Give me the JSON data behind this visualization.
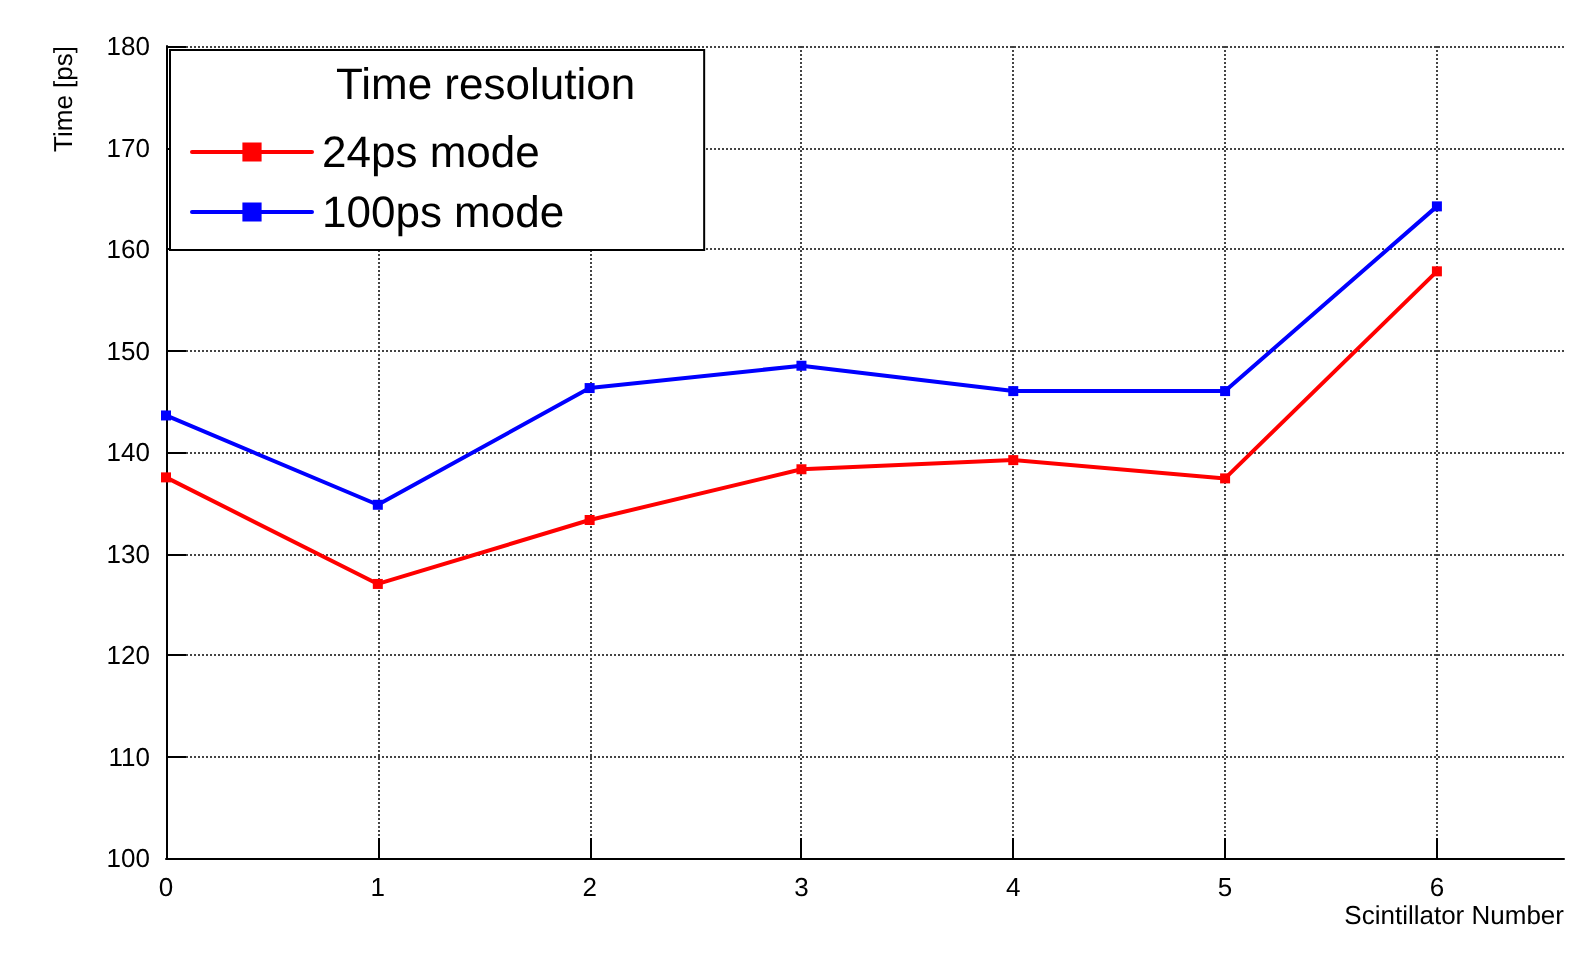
{
  "chart_data": {
    "type": "line",
    "xlabel": "Scintillator Number",
    "ylabel": "Time [ps]",
    "legend_title": "Time resolution",
    "x": [
      0,
      1,
      2,
      3,
      4,
      5,
      6
    ],
    "series": [
      {
        "name": "24ps mode",
        "color": "#ff0000",
        "values": [
          137.5,
          127,
          133.3,
          138.3,
          139.2,
          137.4,
          157.8
        ]
      },
      {
        "name": "100ps mode",
        "color": "#0000ff",
        "values": [
          143.6,
          134.8,
          146.3,
          148.5,
          146,
          146,
          164.2
        ]
      }
    ],
    "xlim": [
      0,
      6.6
    ],
    "xticks": [
      0,
      1,
      2,
      3,
      4,
      5,
      6
    ],
    "ylim": [
      100,
      180
    ],
    "yticks": [
      100,
      110,
      120,
      130,
      140,
      150,
      160,
      170,
      180
    ],
    "grid": true,
    "legend": "top left",
    "marker": "square",
    "line_style": "solid"
  }
}
